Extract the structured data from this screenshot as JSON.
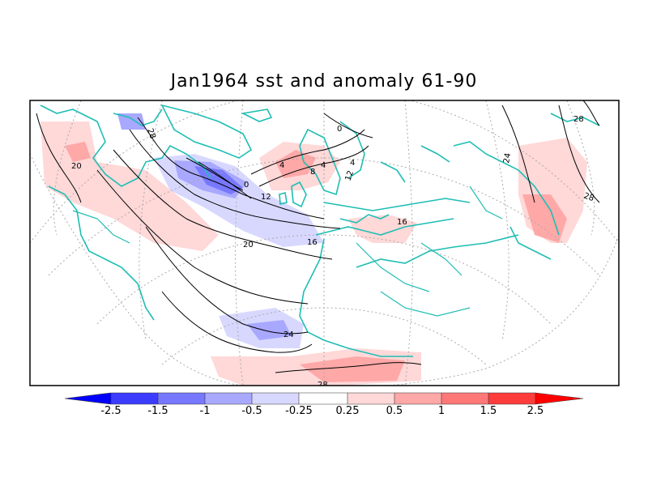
{
  "title": "Jan1964 sst and anomaly 61-90",
  "contour_labels": [
    "28",
    "20",
    "28",
    "24",
    "28",
    "0",
    "4",
    "8",
    "4",
    "12",
    "0",
    "4",
    "12",
    "16",
    "16",
    "20",
    "24",
    "28"
  ],
  "colorbar": {
    "labels": [
      "-2.5",
      "-1.5",
      "-1",
      "-0.5",
      "-0.25",
      "0.25",
      "0.5",
      "1",
      "1.5",
      "2.5"
    ],
    "colors": [
      "#0000ff",
      "#3c3cff",
      "#7878ff",
      "#a8a8ff",
      "#d8d8ff",
      "#ffffff",
      "#ffd8d8",
      "#ffa8a8",
      "#ff7878",
      "#ff3c3c",
      "#ff0000"
    ]
  },
  "colors": {
    "coast": "#1ebeb4",
    "contour": "#000000",
    "grid": "#aaaaaa"
  }
}
